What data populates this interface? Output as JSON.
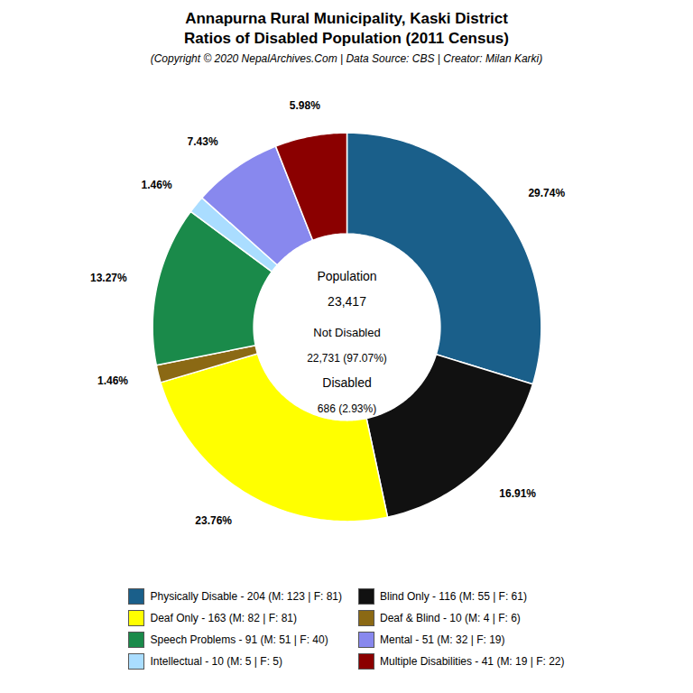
{
  "chart_data": {
    "type": "pie",
    "title": "Annapurna Rural Municipality, Kaski District\nRatios of Disabled Population (2011 Census)",
    "subtitle": "(Copyright © 2020 NepalArchives.Com | Data Source: CBS | Creator: Milan Karki)",
    "categories": [
      "Physically Disable - 204 (M: 123 | F: 81)",
      "Blind Only - 116 (M: 55 | F: 61)",
      "Deaf Only - 163 (M: 82 | F: 81)",
      "Deaf & Blind - 10 (M: 4 | F: 6)",
      "Speech Problems - 91 (M: 51 | F: 40)",
      "Intellectual - 10 (M: 5 | F: 5)",
      "Mental - 51 (M: 32 | F: 19)",
      "Multiple Disabilities - 41 (M: 19 | F: 22)"
    ],
    "values": [
      29.74,
      16.91,
      23.76,
      1.46,
      13.27,
      1.46,
      7.43,
      5.98
    ],
    "value_labels": [
      "29.74%",
      "16.91%",
      "23.76%",
      "1.46%",
      "13.27%",
      "1.46%",
      "7.43%",
      "5.98%"
    ],
    "data_labels": true,
    "colors": [
      "#1a5f8a",
      "#111111",
      "#ffff00",
      "#8b6914",
      "#1a8a4a",
      "#aaddff",
      "#8888ee",
      "#8b0000"
    ],
    "annotations": [
      "Population",
      "23,417",
      "Not Disabled",
      "22,731 (97.07%)",
      "Disabled",
      "686 (2.93%)"
    ],
    "legend": "bottom",
    "legend_labels": [
      "Physically Disable - 204 (M: 123 | F: 81)",
      "Blind Only - 116 (M: 55 | F: 61)",
      "Deaf Only - 163 (M: 82 | F: 81)",
      "Deaf & Blind - 10 (M: 4 | F: 6)",
      "Speech Problems - 91 (M: 51 | F: 40)",
      "Mental - 51 (M: 32 | F: 19)",
      "Intellectual - 10 (M: 5 | F: 5)",
      "Multiple Disabilities - 41 (M: 19 | F: 22)"
    ],
    "legend_colors": [
      "#1a5f8a",
      "#111111",
      "#ffff00",
      "#8b6914",
      "#1a8a4a",
      "#8888ee",
      "#aaddff",
      "#8b0000"
    ]
  }
}
